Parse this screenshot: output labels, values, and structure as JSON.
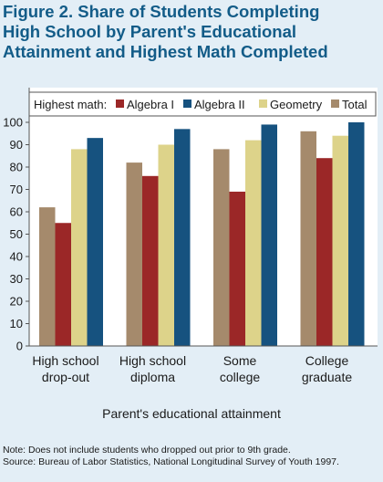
{
  "figure": {
    "title": "Figure 2.  Share of Students Completing\nHigh School by Parent's Educational\nAttainment and Highest Math Completed",
    "note": "Note: Does not include students who dropped out prior to 9th grade.",
    "source": "Source: Bureau of Labor Statistics, National Longitudinal Survey of Youth 1997."
  },
  "chart_data": {
    "type": "bar",
    "title": "Figure 2.  Share of Students Completing High School by Parent's Educational Attainment and Highest Math Completed",
    "xlabel": "Parent's educational attainment",
    "ylabel": "",
    "ylim": [
      0,
      100
    ],
    "yticks": [
      0,
      10,
      20,
      30,
      40,
      50,
      60,
      70,
      80,
      90,
      100
    ],
    "grid": false,
    "legend_title": "Highest math:",
    "legend_position": "top",
    "categories": [
      [
        "High school",
        "drop-out"
      ],
      [
        "High school",
        "diploma"
      ],
      [
        "Some",
        "college"
      ],
      [
        "College",
        "graduate"
      ]
    ],
    "series": [
      {
        "name": "Total",
        "color": "#a58a6c",
        "values": [
          62,
          82,
          88,
          96
        ]
      },
      {
        "name": "Algebra I",
        "color": "#9b2727",
        "values": [
          55,
          76,
          69,
          84
        ]
      },
      {
        "name": "Geometry",
        "color": "#ddd38a",
        "values": [
          88,
          90,
          92,
          94
        ]
      },
      {
        "name": "Algebra II",
        "color": "#16527f",
        "values": [
          93,
          97,
          99,
          100
        ]
      }
    ],
    "legend_order": [
      "Algebra I",
      "Algebra II",
      "Geometry",
      "Total"
    ]
  }
}
